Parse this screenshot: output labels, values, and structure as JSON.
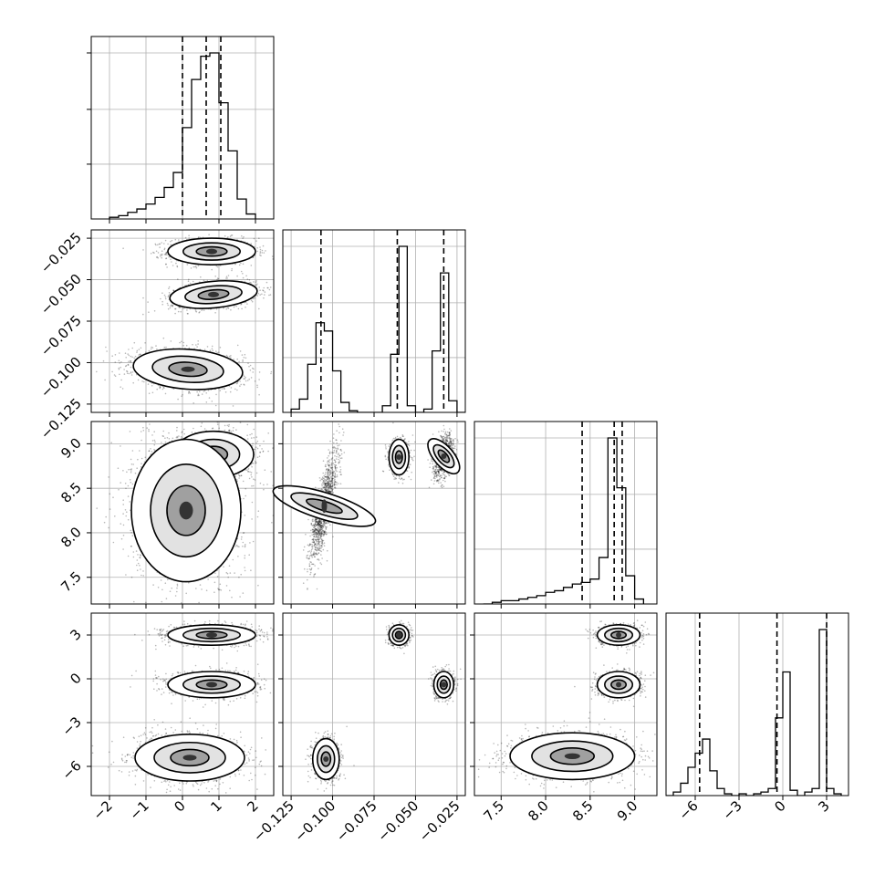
{
  "chart_data": {
    "type": "corner",
    "title": "",
    "grid": true,
    "parameters": [
      {
        "range": [
          -2.5,
          2.5
        ],
        "ticks": [
          -2,
          -1,
          0,
          1,
          2
        ],
        "tick_labels": [
          "−2",
          "−1",
          "0",
          "1",
          "2"
        ],
        "quantiles": [
          0.0,
          0.65,
          1.05
        ]
      },
      {
        "range": [
          -0.13,
          -0.02
        ],
        "ticks": [
          -0.125,
          -0.1,
          -0.075,
          -0.05,
          -0.025
        ],
        "tick_labels": [
          "−0.125",
          "−0.100",
          "−0.075",
          "−0.050",
          "−0.025"
        ],
        "quantiles": [
          -0.107,
          -0.061,
          -0.033
        ]
      },
      {
        "range": [
          7.2,
          9.25
        ],
        "ticks": [
          7.5,
          8.0,
          8.5,
          9.0
        ],
        "tick_labels": [
          "7.5",
          "8.0",
          "8.5",
          "9.0"
        ],
        "quantiles": [
          8.41,
          8.77,
          8.86
        ]
      },
      {
        "range": [
          -8.0,
          4.5
        ],
        "ticks": [
          -6,
          -3,
          0,
          3
        ],
        "tick_labels": [
          "−6",
          "−3",
          "0",
          "3"
        ],
        "quantiles": [
          -5.7,
          -0.4,
          3.0
        ]
      }
    ],
    "histograms": [
      {
        "param": 0,
        "bin_edges": [
          -2.0,
          -1.75,
          -1.5,
          -1.25,
          -1.0,
          -0.75,
          -0.5,
          -0.25,
          0.0,
          0.25,
          0.5,
          0.75,
          1.0,
          1.25,
          1.5,
          1.75,
          2.0
        ],
        "counts": [
          1,
          2,
          4,
          6,
          9,
          13,
          19,
          28,
          55,
          84,
          98,
          100,
          70,
          41,
          12,
          3
        ]
      },
      {
        "param": 1,
        "bin_edges": [
          -0.125,
          -0.12,
          -0.115,
          -0.11,
          -0.105,
          -0.1,
          -0.095,
          -0.09,
          -0.085,
          -0.08,
          -0.075,
          -0.07,
          -0.065,
          -0.06,
          -0.055,
          -0.05,
          -0.045,
          -0.04,
          -0.035,
          -0.03,
          -0.025,
          -0.02
        ],
        "counts": [
          2,
          8,
          29,
          54,
          49,
          25,
          6,
          1,
          0,
          0,
          0,
          4,
          35,
          100,
          4,
          0,
          2,
          37,
          84,
          7,
          0
        ]
      },
      {
        "param": 2,
        "bin_edges": [
          7.3,
          7.4,
          7.5,
          7.6,
          7.7,
          7.8,
          7.9,
          8.0,
          8.1,
          8.2,
          8.3,
          8.4,
          8.5,
          8.6,
          8.7,
          8.8,
          8.9,
          9.0,
          9.1
        ],
        "counts": [
          0,
          1,
          2,
          2,
          3,
          4,
          5,
          7,
          8,
          10,
          12,
          13,
          15,
          28,
          100,
          70,
          17,
          3
        ]
      },
      {
        "param": 3,
        "bin_edges": [
          -8.0,
          -7.5,
          -7.0,
          -6.5,
          -6.0,
          -5.5,
          -5.0,
          -4.5,
          -4.0,
          -3.5,
          -3.0,
          -2.5,
          -2.0,
          -1.5,
          -1.0,
          -0.5,
          0.0,
          0.5,
          1.0,
          1.5,
          2.0,
          2.5,
          3.0,
          3.5,
          4.0
        ],
        "counts": [
          0,
          2,
          7,
          16,
          24,
          32,
          14,
          4,
          1,
          0,
          1,
          0,
          1,
          2,
          4,
          44,
          70,
          3,
          0,
          2,
          4,
          94,
          4,
          1
        ]
      }
    ],
    "scatter_panels": [
      {
        "x_param": 0,
        "y_param": 1,
        "clusters": [
          {
            "x": 0.8,
            "y": -0.033,
            "sx": 0.6,
            "sy": 0.004,
            "n": 1200
          },
          {
            "x": 0.85,
            "y": -0.059,
            "sx": 0.6,
            "sy": 0.004,
            "n": 1200,
            "rho": 0.3
          },
          {
            "x": 0.15,
            "y": -0.104,
            "sx": 0.75,
            "sy": 0.006,
            "n": 1500,
            "rho": -0.2
          }
        ]
      },
      {
        "x_param": 0,
        "y_param": 2,
        "clusters": [
          {
            "x": 0.85,
            "y": 8.88,
            "sx": 0.55,
            "sy": 0.13,
            "n": 1300
          },
          {
            "x": 0.1,
            "y": 8.25,
            "sx": 0.75,
            "sy": 0.4,
            "n": 2200
          }
        ]
      },
      {
        "x_param": 1,
        "y_param": 2,
        "clusters": [
          {
            "x": -0.06,
            "y": 8.85,
            "sx": 0.003,
            "sy": 0.1,
            "n": 900
          },
          {
            "x": -0.033,
            "y": 8.86,
            "sx": 0.003,
            "sy": 0.12,
            "n": 900,
            "rho": 0.4
          },
          {
            "x": -0.105,
            "y": 8.3,
            "sx": 0.004,
            "sy": 0.3,
            "n": 1300,
            "rho": 0.8
          }
        ]
      },
      {
        "x_param": 0,
        "y_param": 3,
        "clusters": [
          {
            "x": 0.8,
            "y": 3.0,
            "sx": 0.6,
            "sy": 0.35,
            "n": 1100
          },
          {
            "x": 0.8,
            "y": -0.4,
            "sx": 0.6,
            "sy": 0.45,
            "n": 1100
          },
          {
            "x": 0.2,
            "y": -5.4,
            "sx": 0.75,
            "sy": 0.8,
            "n": 1600
          }
        ]
      },
      {
        "x_param": 1,
        "y_param": 3,
        "clusters": [
          {
            "x": -0.06,
            "y": 3.0,
            "sx": 0.003,
            "sy": 0.35,
            "n": 800
          },
          {
            "x": -0.033,
            "y": -0.4,
            "sx": 0.003,
            "sy": 0.45,
            "n": 800
          },
          {
            "x": -0.104,
            "y": -5.5,
            "sx": 0.004,
            "sy": 0.7,
            "n": 1100
          }
        ]
      },
      {
        "x_param": 2,
        "y_param": 3,
        "clusters": [
          {
            "x": 8.82,
            "y": 3.0,
            "sx": 0.12,
            "sy": 0.35,
            "n": 900
          },
          {
            "x": 8.82,
            "y": -0.4,
            "sx": 0.12,
            "sy": 0.45,
            "n": 900
          },
          {
            "x": 8.3,
            "y": -5.3,
            "sx": 0.35,
            "sy": 0.8,
            "n": 1500
          }
        ]
      }
    ]
  },
  "colors": {
    "ink": "#000000",
    "grid": "#b0b0b0",
    "points": "#000000"
  }
}
